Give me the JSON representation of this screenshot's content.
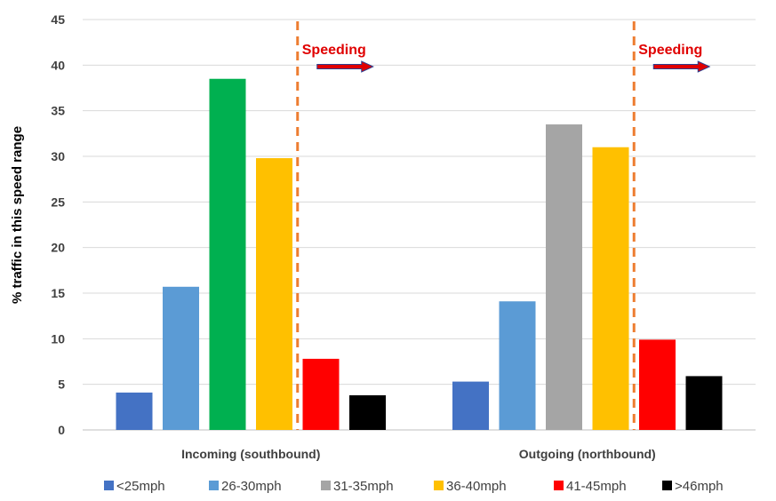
{
  "chart_data": {
    "type": "bar",
    "title": "",
    "xlabel": "",
    "ylabel": "% traffic in this speed range",
    "ylim": [
      0,
      45
    ],
    "yticks": [
      0,
      5,
      10,
      15,
      20,
      25,
      30,
      35,
      40,
      45
    ],
    "grid": true,
    "legend_position": "bottom",
    "categories": [
      "Incoming (southbound)",
      "Outgoing (northbound)"
    ],
    "series": [
      {
        "name": "<25mph",
        "color": "#4472c4",
        "values": [
          4.1,
          5.3
        ]
      },
      {
        "name": "26-30mph",
        "color": "#5b9bd5",
        "values": [
          15.7,
          14.1
        ]
      },
      {
        "name": "31-35mph",
        "color": null,
        "colors": [
          "#00b050",
          "#a5a5a5"
        ],
        "values": [
          38.5,
          33.5
        ]
      },
      {
        "name": "36-40mph",
        "color": "#ffc000",
        "values": [
          29.8,
          31.0
        ]
      },
      {
        "name": "41-45mph",
        "color": "#ff0000",
        "values": [
          7.8,
          9.9
        ]
      },
      {
        "name": ">46mph",
        "color": "#000000",
        "values": [
          3.8,
          5.9
        ]
      }
    ],
    "legend_colors": [
      "#4472c4",
      "#5b9bd5",
      "#a5a5a5",
      "#ffc000",
      "#ff0000",
      "#000000"
    ],
    "annotations": [
      {
        "text": "Speeding",
        "group": 0,
        "color": "#e00000",
        "marker_color": "#ed7d31"
      },
      {
        "text": "Speeding",
        "group": 1,
        "color": "#e00000",
        "marker_color": "#ed7d31"
      }
    ]
  }
}
